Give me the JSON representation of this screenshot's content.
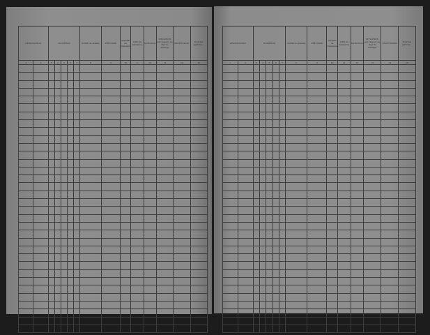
{
  "document": {
    "type": "census register, two facing pages",
    "headers": {
      "designation": "DÉSIGNATION",
      "numeros": "NUMÉROS",
      "noms": "NOMS de famille",
      "prenoms": "PRÉNOMS",
      "annee": "ANNÉE de naissance",
      "lieu": "LIEU de naissance",
      "nationalite": "NATIONALITÉ",
      "situation": "SITUATION par rapport au chef de ménage",
      "profession": "PROFESSION",
      "observations": "Pour les patrons..."
    },
    "column_numbers": [
      "1",
      "2",
      "3",
      "4",
      "5",
      "6",
      "7",
      "8",
      "9",
      "10",
      "11",
      "12",
      "13",
      "14",
      "15"
    ]
  },
  "colors": {
    "background": "#1c1c1c",
    "paper": "#8c8c8c",
    "ink": "#2a2a2a"
  }
}
